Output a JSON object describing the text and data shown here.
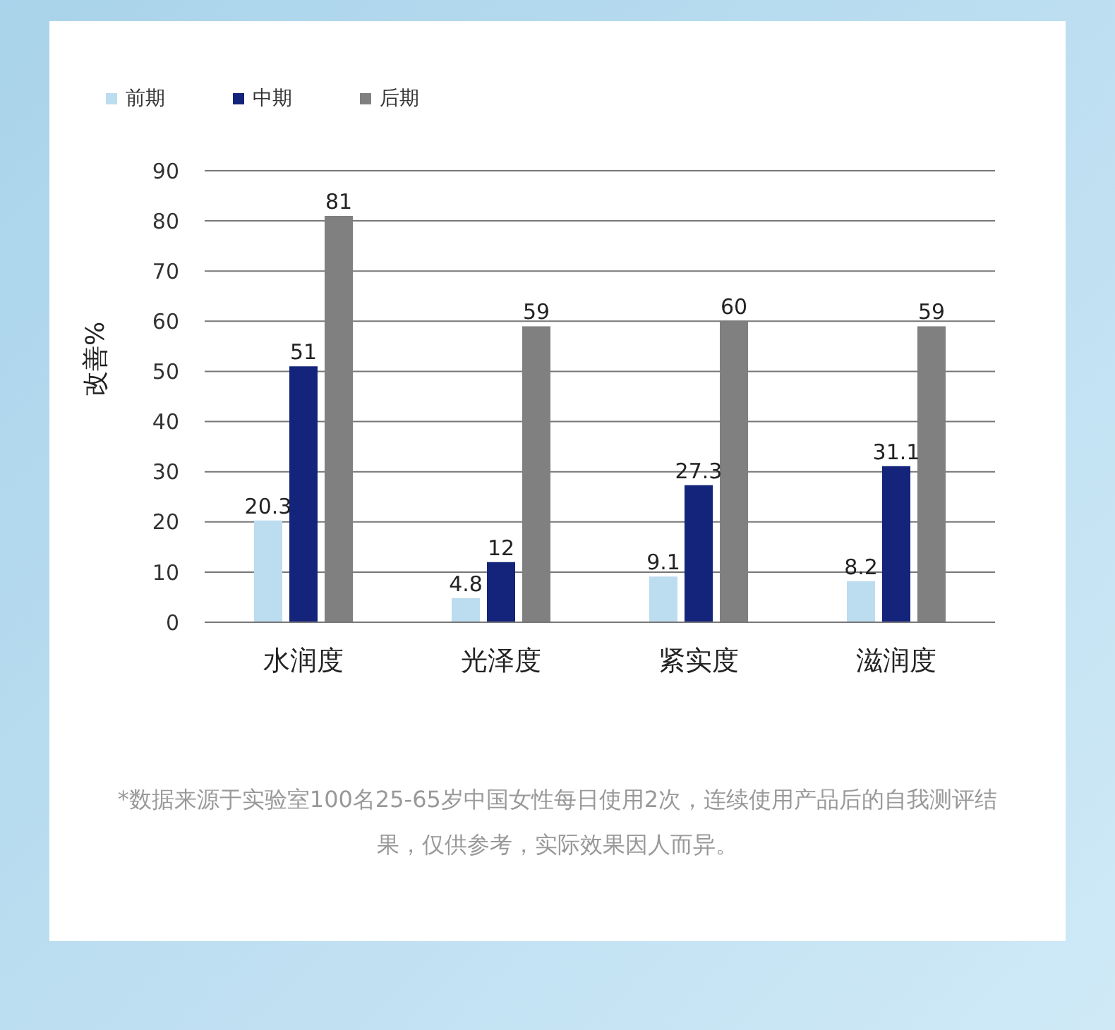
{
  "chart_data": {
    "type": "bar",
    "ylabel": "改善%",
    "categories": [
      "水润度",
      "光泽度",
      "紧实度",
      "滋润度"
    ],
    "series": [
      {
        "name": "前期",
        "color": "#bcdcf0",
        "values": [
          20.3,
          4.8,
          9.1,
          8.2
        ]
      },
      {
        "name": "中期",
        "color": "#13247a",
        "values": [
          51,
          12,
          27.3,
          31.1
        ]
      },
      {
        "name": "后期",
        "color": "#808080",
        "values": [
          81,
          59,
          60,
          59
        ]
      }
    ],
    "ylim": [
      0,
      90
    ],
    "yticks": [
      0,
      10,
      20,
      30,
      40,
      50,
      60,
      70,
      80,
      90
    ],
    "grid": "y",
    "legend": "top left",
    "data_labels": true,
    "annotations": [
      "*数据来源于实验室100名25-65岁中国女性每日使用2次，连续使用产品后的自我测评结果，仅供参考，实际效果因人而异。"
    ]
  }
}
